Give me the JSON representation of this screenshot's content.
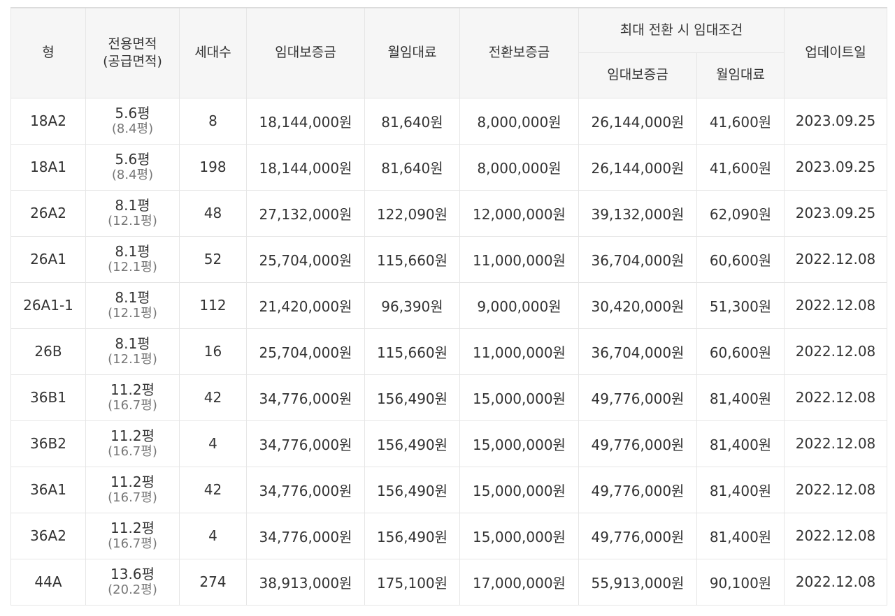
{
  "header": {
    "type": "형",
    "area_line1": "전용면적",
    "area_line2": "(공급면적)",
    "households": "세대수",
    "deposit": "임대보증금",
    "monthly_rent": "월임대료",
    "conversion_deposit": "전환보증금",
    "max_conversion_group": "최대 전환 시 임대조건",
    "max_deposit": "임대보증금",
    "max_monthly_rent": "월임대료",
    "update_date": "업데이트일"
  },
  "rows": [
    {
      "type": "18A2",
      "area": "5.6평",
      "supply_area": "(8.4평)",
      "households": "8",
      "deposit": "18,144,000원",
      "rent": "81,640원",
      "conversion": "8,000,000원",
      "max_deposit": "26,144,000원",
      "max_rent": "41,600원",
      "updated": "2023.09.25"
    },
    {
      "type": "18A1",
      "area": "5.6평",
      "supply_area": "(8.4평)",
      "households": "198",
      "deposit": "18,144,000원",
      "rent": "81,640원",
      "conversion": "8,000,000원",
      "max_deposit": "26,144,000원",
      "max_rent": "41,600원",
      "updated": "2023.09.25"
    },
    {
      "type": "26A2",
      "area": "8.1평",
      "supply_area": "(12.1평)",
      "households": "48",
      "deposit": "27,132,000원",
      "rent": "122,090원",
      "conversion": "12,000,000원",
      "max_deposit": "39,132,000원",
      "max_rent": "62,090원",
      "updated": "2023.09.25"
    },
    {
      "type": "26A1",
      "area": "8.1평",
      "supply_area": "(12.1평)",
      "households": "52",
      "deposit": "25,704,000원",
      "rent": "115,660원",
      "conversion": "11,000,000원",
      "max_deposit": "36,704,000원",
      "max_rent": "60,600원",
      "updated": "2022.12.08"
    },
    {
      "type": "26A1-1",
      "area": "8.1평",
      "supply_area": "(12.1평)",
      "households": "112",
      "deposit": "21,420,000원",
      "rent": "96,390원",
      "conversion": "9,000,000원",
      "max_deposit": "30,420,000원",
      "max_rent": "51,300원",
      "updated": "2022.12.08"
    },
    {
      "type": "26B",
      "area": "8.1평",
      "supply_area": "(12.1평)",
      "households": "16",
      "deposit": "25,704,000원",
      "rent": "115,660원",
      "conversion": "11,000,000원",
      "max_deposit": "36,704,000원",
      "max_rent": "60,600원",
      "updated": "2022.12.08"
    },
    {
      "type": "36B1",
      "area": "11.2평",
      "supply_area": "(16.7평)",
      "households": "42",
      "deposit": "34,776,000원",
      "rent": "156,490원",
      "conversion": "15,000,000원",
      "max_deposit": "49,776,000원",
      "max_rent": "81,400원",
      "updated": "2022.12.08"
    },
    {
      "type": "36B2",
      "area": "11.2평",
      "supply_area": "(16.7평)",
      "households": "4",
      "deposit": "34,776,000원",
      "rent": "156,490원",
      "conversion": "15,000,000원",
      "max_deposit": "49,776,000원",
      "max_rent": "81,400원",
      "updated": "2022.12.08"
    },
    {
      "type": "36A1",
      "area": "11.2평",
      "supply_area": "(16.7평)",
      "households": "42",
      "deposit": "34,776,000원",
      "rent": "156,490원",
      "conversion": "15,000,000원",
      "max_deposit": "49,776,000원",
      "max_rent": "81,400원",
      "updated": "2022.12.08"
    },
    {
      "type": "36A2",
      "area": "11.2평",
      "supply_area": "(16.7평)",
      "households": "4",
      "deposit": "34,776,000원",
      "rent": "156,490원",
      "conversion": "15,000,000원",
      "max_deposit": "49,776,000원",
      "max_rent": "81,400원",
      "updated": "2022.12.08"
    },
    {
      "type": "44A",
      "area": "13.6평",
      "supply_area": "(20.2평)",
      "households": "274",
      "deposit": "38,913,000원",
      "rent": "175,100원",
      "conversion": "17,000,000원",
      "max_deposit": "55,913,000원",
      "max_rent": "90,100원",
      "updated": "2022.12.08"
    }
  ]
}
